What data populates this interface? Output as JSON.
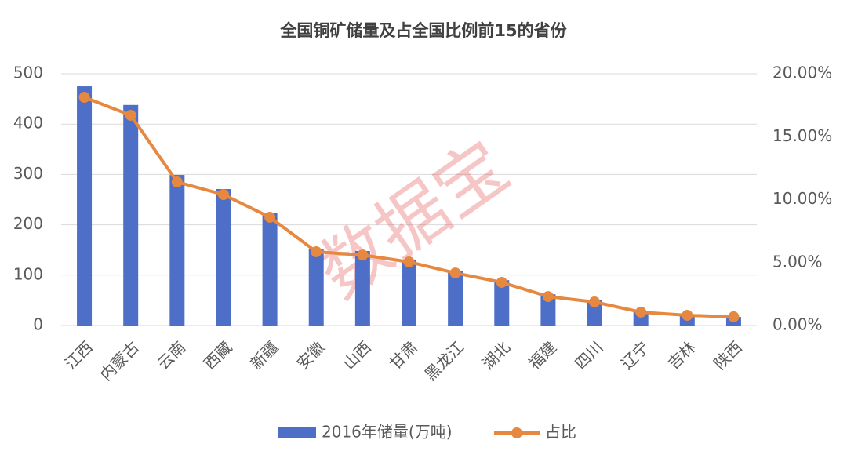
{
  "chart_data": {
    "type": "combo",
    "title": "全国铜矿储量及占全国比例前15的省份",
    "watermark": "数据宝",
    "categories": [
      "江西",
      "内蒙古",
      "云南",
      "西藏",
      "新疆",
      "安徽",
      "山西",
      "甘肃",
      "黑龙江",
      "湖北",
      "福建",
      "四川",
      "辽宁",
      "吉林",
      "陕西"
    ],
    "series": [
      {
        "name": "2016年储量(万吨)",
        "type": "bar",
        "color": "#4e6fc7",
        "values": [
          475,
          438,
          299,
          271,
          224,
          151,
          148,
          131,
          109,
          90,
          62,
          50,
          28,
          19,
          17
        ]
      },
      {
        "name": "占比",
        "type": "line",
        "axis": "y2",
        "color": "#e6883f",
        "values": [
          18.13,
          16.7,
          11.4,
          10.4,
          8.6,
          5.86,
          5.6,
          5.05,
          4.17,
          3.43,
          2.3,
          1.87,
          1.06,
          0.81,
          0.69
        ]
      }
    ],
    "ylim": [
      0,
      500
    ],
    "yticks": [
      0,
      100,
      200,
      300,
      400,
      500
    ],
    "y2lim": [
      0,
      20
    ],
    "y2ticks": [
      {
        "value": 0,
        "label": "0.00%"
      },
      {
        "value": 5,
        "label": "5.00%"
      },
      {
        "value": 10,
        "label": "10.00%"
      },
      {
        "value": 15,
        "label": "15.00%"
      },
      {
        "value": 20,
        "label": "20.00%"
      }
    ],
    "grid": true,
    "legend": "bottom"
  }
}
